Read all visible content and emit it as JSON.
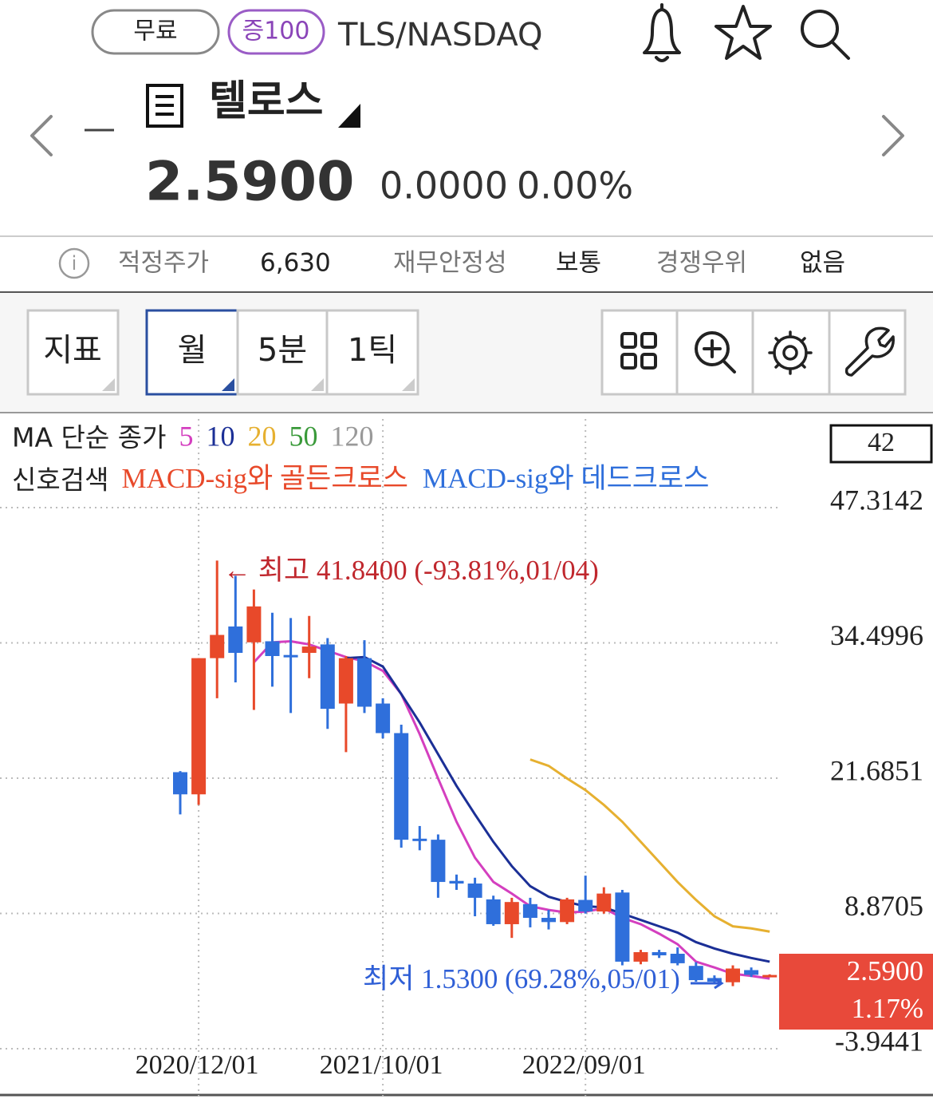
{
  "header": {
    "badges": [
      "무료",
      "증100"
    ],
    "ticker": "TLS/NASDAQ",
    "name": "텔로스",
    "price": "2.5900",
    "change": "0.0000",
    "change_pct": "0.00%"
  },
  "info": [
    {
      "label": "적정주가",
      "value": "6,630"
    },
    {
      "label": "재무안정성",
      "value": "보통"
    },
    {
      "label": "경쟁우위",
      "value": "없음"
    }
  ],
  "toolbar": [
    "지표",
    "월",
    "5분",
    "1틱"
  ],
  "chart_data": {
    "type": "candlestick",
    "legend_title": "MA 단순 종가",
    "signal_title": "신호검색",
    "signals": [
      {
        "name": "MACD-sig와 골든크로스",
        "color": "#e8492a"
      },
      {
        "name": "MACD-sig와 데드크로스",
        "color": "#2f6fdb"
      }
    ],
    "cursor_label": "42",
    "categories": [
      null,
      "2020/12/01",
      null,
      null,
      null,
      null,
      null,
      null,
      null,
      null,
      null,
      "2021/10/01",
      null,
      null,
      null,
      null,
      null,
      null,
      null,
      null,
      null,
      null,
      "2022/09/01",
      null,
      null,
      null,
      null,
      null,
      null,
      null,
      null,
      null,
      null
    ],
    "open": [
      21.8,
      19.7,
      32.6,
      35.6,
      34.1,
      34.2,
      32.9,
      33.1,
      33.9,
      28.3,
      32.6,
      28.3,
      25.5,
      15.5,
      15.4,
      11.5,
      11.25,
      9.75,
      7.4,
      9.3,
      8.0,
      7.6,
      9.7,
      8.6,
      10.4,
      3.85,
      4.75,
      4.6,
      3.45,
      2.3,
      1.9,
      3.05,
      2.56
    ],
    "high": [
      21.9,
      32.6,
      41.84,
      40.4,
      39.1,
      36.9,
      36.4,
      36.6,
      34.5,
      32.8,
      34.3,
      28.8,
      26.3,
      16.7,
      15.9,
      12.1,
      11.8,
      10.1,
      9.9,
      9.9,
      8.75,
      9.9,
      12.0,
      10.9,
      10.65,
      4.97,
      4.97,
      5.2,
      3.8,
      2.55,
      3.5,
      3.3,
      2.65
    ],
    "low": [
      17.8,
      18.7,
      28.8,
      30.3,
      27.7,
      29.9,
      27.4,
      30.7,
      25.9,
      23.7,
      27.4,
      25.0,
      14.65,
      14.4,
      9.9,
      10.65,
      8.15,
      7.25,
      6.1,
      7.1,
      6.9,
      7.4,
      8.4,
      8.4,
      3.5,
      3.6,
      4.2,
      3.5,
      1.95,
      1.8,
      1.53,
      2.4,
      2.5
    ],
    "close": [
      19.7,
      32.6,
      34.8,
      33.1,
      37.5,
      32.8,
      32.7,
      33.7,
      27.8,
      32.6,
      28.0,
      25.5,
      15.4,
      15.3,
      11.4,
      11.25,
      9.9,
      7.4,
      9.5,
      8.0,
      7.6,
      9.75,
      8.6,
      10.3,
      3.85,
      4.75,
      4.45,
      3.7,
      2.1,
      1.95,
      3.2,
      2.6,
      2.59
    ],
    "up_color": "#e8492a",
    "down_color": "#2f6fdb",
    "series": [
      {
        "name": "5",
        "color": "#d43fbf",
        "values": [
          null,
          null,
          null,
          null,
          32.2,
          34.1,
          34.2,
          33.9,
          33.3,
          32.7,
          32.3,
          31.4,
          29.2,
          25.4,
          21.2,
          17.1,
          13.7,
          11.4,
          10.3,
          9.1,
          8.75,
          8.5,
          8.6,
          8.9,
          8.0,
          7.4,
          6.5,
          5.5,
          3.85,
          3.3,
          2.7,
          2.5,
          2.25
        ]
      },
      {
        "name": "10",
        "color": "#1b2f96",
        "values": [
          null,
          null,
          null,
          null,
          null,
          null,
          null,
          null,
          null,
          32.6,
          32.7,
          31.8,
          29.2,
          26.5,
          23.5,
          20.5,
          17.8,
          15.2,
          12.9,
          11.0,
          10.0,
          9.5,
          9.1,
          9.0,
          8.4,
          7.8,
          7.2,
          6.6,
          5.7,
          5.1,
          4.6,
          4.2,
          3.85
        ]
      },
      {
        "name": "20",
        "color": "#e6b030",
        "values": [
          null,
          null,
          null,
          null,
          null,
          null,
          null,
          null,
          null,
          null,
          null,
          null,
          null,
          null,
          null,
          null,
          null,
          null,
          null,
          23.0,
          22.4,
          21.2,
          20.1,
          18.7,
          17.1,
          15.2,
          13.3,
          11.4,
          9.7,
          8.15,
          7.2,
          7.0,
          6.7
        ]
      },
      {
        "name": "50",
        "color": "#3a9a3a",
        "values": [
          null,
          null,
          null,
          null,
          null,
          null,
          null,
          null,
          null,
          null,
          null,
          null,
          null,
          null,
          null,
          null,
          null,
          null,
          null,
          null,
          null,
          null,
          null,
          null,
          null,
          null,
          null,
          null,
          null,
          null,
          null,
          null,
          null
        ]
      },
      {
        "name": "120",
        "color": "#999999",
        "values": [
          null,
          null,
          null,
          null,
          null,
          null,
          null,
          null,
          null,
          null,
          null,
          null,
          null,
          null,
          null,
          null,
          null,
          null,
          null,
          null,
          null,
          null,
          null,
          null,
          null,
          null,
          null,
          null,
          null,
          null,
          null,
          null,
          null
        ]
      }
    ],
    "ylim": [
      -4.85,
      55.63
    ],
    "yticks": [
      47.3142,
      34.4996,
      21.6851,
      8.8705,
      -3.9441
    ],
    "grid": true,
    "annotations": [
      {
        "text": "← 최고 41.8400 (-93.81%,01/04)",
        "color": "#c0272d"
      },
      {
        "text": "최저 1.5300 (69.28%,05/01)",
        "color": "#2f5fd6"
      }
    ],
    "last_price": {
      "price": "2.5900",
      "change": "1.17%",
      "color": "#e8493a"
    }
  }
}
